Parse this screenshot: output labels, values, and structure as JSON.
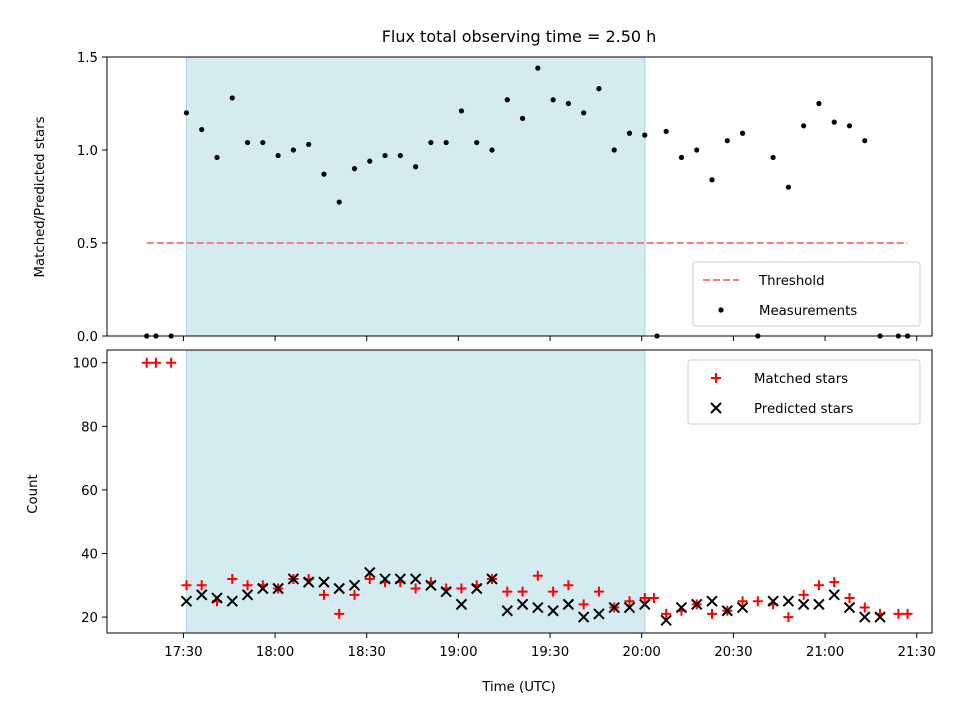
{
  "chart_data": {
    "title": "Flux total observing time = 2.50 h",
    "x_axis": {
      "label": "Time (UTC)",
      "ticks": [
        "17:30",
        "18:00",
        "18:30",
        "19:00",
        "19:30",
        "20:00",
        "20:30",
        "21:00",
        "21:30"
      ],
      "range": [
        "17:05",
        "21:35"
      ]
    },
    "observing_window": {
      "start": "17:31",
      "end": "20:01",
      "color": "#d3ebf1"
    },
    "panels": [
      {
        "id": "top",
        "type": "scatter",
        "ylabel": "Matched/Predicted stars",
        "ylim": [
          0,
          1.5
        ],
        "yticks": [
          "0.0",
          "0.5",
          "1.0",
          "1.5"
        ],
        "legend_position": "lower-right",
        "series": [
          {
            "name": "Threshold",
            "style": "dashed-line",
            "color": "#f87f7f",
            "x": [
              "17:18",
              "21:27"
            ],
            "y": [
              0.5,
              0.5
            ]
          },
          {
            "name": "Measurements",
            "style": "dot",
            "color": "#000000",
            "x": [
              "17:18",
              "17:21",
              "17:26",
              "17:31",
              "17:36",
              "17:41",
              "17:46",
              "17:51",
              "17:56",
              "18:01",
              "18:06",
              "18:11",
              "18:16",
              "18:21",
              "18:26",
              "18:31",
              "18:36",
              "18:41",
              "18:46",
              "18:51",
              "18:56",
              "19:01",
              "19:06",
              "19:11",
              "19:16",
              "19:21",
              "19:26",
              "19:31",
              "19:36",
              "19:41",
              "19:46",
              "19:51",
              "19:56",
              "20:01",
              "20:05",
              "20:08",
              "20:13",
              "20:18",
              "20:23",
              "20:28",
              "20:33",
              "20:38",
              "20:43",
              "20:48",
              "20:53",
              "20:58",
              "21:03",
              "21:08",
              "21:13",
              "21:18",
              "21:24",
              "21:27"
            ],
            "y": [
              0,
              0,
              0,
              1.2,
              1.11,
              0.96,
              1.28,
              1.04,
              1.04,
              0.97,
              1.0,
              1.03,
              0.87,
              0.72,
              0.9,
              0.94,
              0.97,
              0.97,
              0.91,
              1.04,
              1.04,
              1.21,
              1.04,
              1.0,
              1.27,
              1.17,
              1.44,
              1.27,
              1.25,
              1.2,
              1.33,
              1.0,
              1.09,
              1.08,
              0,
              1.1,
              0.96,
              1.0,
              0.84,
              1.05,
              1.09,
              0,
              0.96,
              0.8,
              1.13,
              1.25,
              1.15,
              1.13,
              1.05,
              0,
              0,
              0
            ]
          }
        ]
      },
      {
        "id": "bottom",
        "type": "scatter",
        "ylabel": "Count",
        "ylim": [
          15,
          104
        ],
        "yticks": [
          "20",
          "40",
          "60",
          "80",
          "100"
        ],
        "legend_position": "upper-right",
        "series": [
          {
            "name": "Matched stars",
            "marker": "plus",
            "color": "#ff0000",
            "x": [
              "17:18",
              "17:21",
              "17:26",
              "17:31",
              "17:36",
              "17:41",
              "17:46",
              "17:51",
              "17:56",
              "18:01",
              "18:06",
              "18:11",
              "18:16",
              "18:21",
              "18:26",
              "18:31",
              "18:36",
              "18:41",
              "18:46",
              "18:51",
              "18:56",
              "19:01",
              "19:06",
              "19:11",
              "19:16",
              "19:21",
              "19:26",
              "19:31",
              "19:36",
              "19:41",
              "19:46",
              "19:51",
              "19:56",
              "20:01",
              "20:04",
              "20:08",
              "20:13",
              "20:18",
              "20:23",
              "20:28",
              "20:33",
              "20:38",
              "20:43",
              "20:48",
              "20:53",
              "20:58",
              "21:03",
              "21:08",
              "21:13",
              "21:18",
              "21:24",
              "21:27"
            ],
            "y": [
              100,
              100,
              100,
              30,
              30,
              25,
              32,
              30,
              30,
              29,
              32,
              32,
              27,
              21,
              27,
              32,
              31,
              31,
              29,
              31,
              29,
              29,
              30,
              32,
              28,
              28,
              33,
              28,
              30,
              24,
              28,
              23,
              25,
              26,
              26,
              21,
              22,
              24,
              21,
              22,
              25,
              25,
              24,
              20,
              27,
              30,
              31,
              26,
              23,
              21,
              21,
              21
            ]
          },
          {
            "name": "Predicted stars",
            "marker": "x",
            "color": "#000000",
            "x": [
              "17:31",
              "17:36",
              "17:41",
              "17:46",
              "17:51",
              "17:56",
              "18:01",
              "18:06",
              "18:11",
              "18:16",
              "18:21",
              "18:26",
              "18:31",
              "18:36",
              "18:41",
              "18:46",
              "18:51",
              "18:56",
              "19:01",
              "19:06",
              "19:11",
              "19:16",
              "19:21",
              "19:26",
              "19:31",
              "19:36",
              "19:41",
              "19:46",
              "19:51",
              "19:56",
              "20:01",
              "20:08",
              "20:13",
              "20:18",
              "20:23",
              "20:28",
              "20:33",
              "20:43",
              "20:48",
              "20:53",
              "20:58",
              "21:03",
              "21:08",
              "21:13",
              "21:18"
            ],
            "y": [
              25,
              27,
              26,
              25,
              27,
              29,
              29,
              32,
              31,
              31,
              29,
              30,
              34,
              32,
              32,
              32,
              30,
              28,
              24,
              29,
              32,
              22,
              24,
              23,
              22,
              24,
              20,
              21,
              23,
              23,
              24,
              19,
              23,
              24,
              25,
              22,
              23,
              25,
              25,
              24,
              24,
              27,
              23,
              20,
              20
            ]
          }
        ]
      }
    ]
  }
}
